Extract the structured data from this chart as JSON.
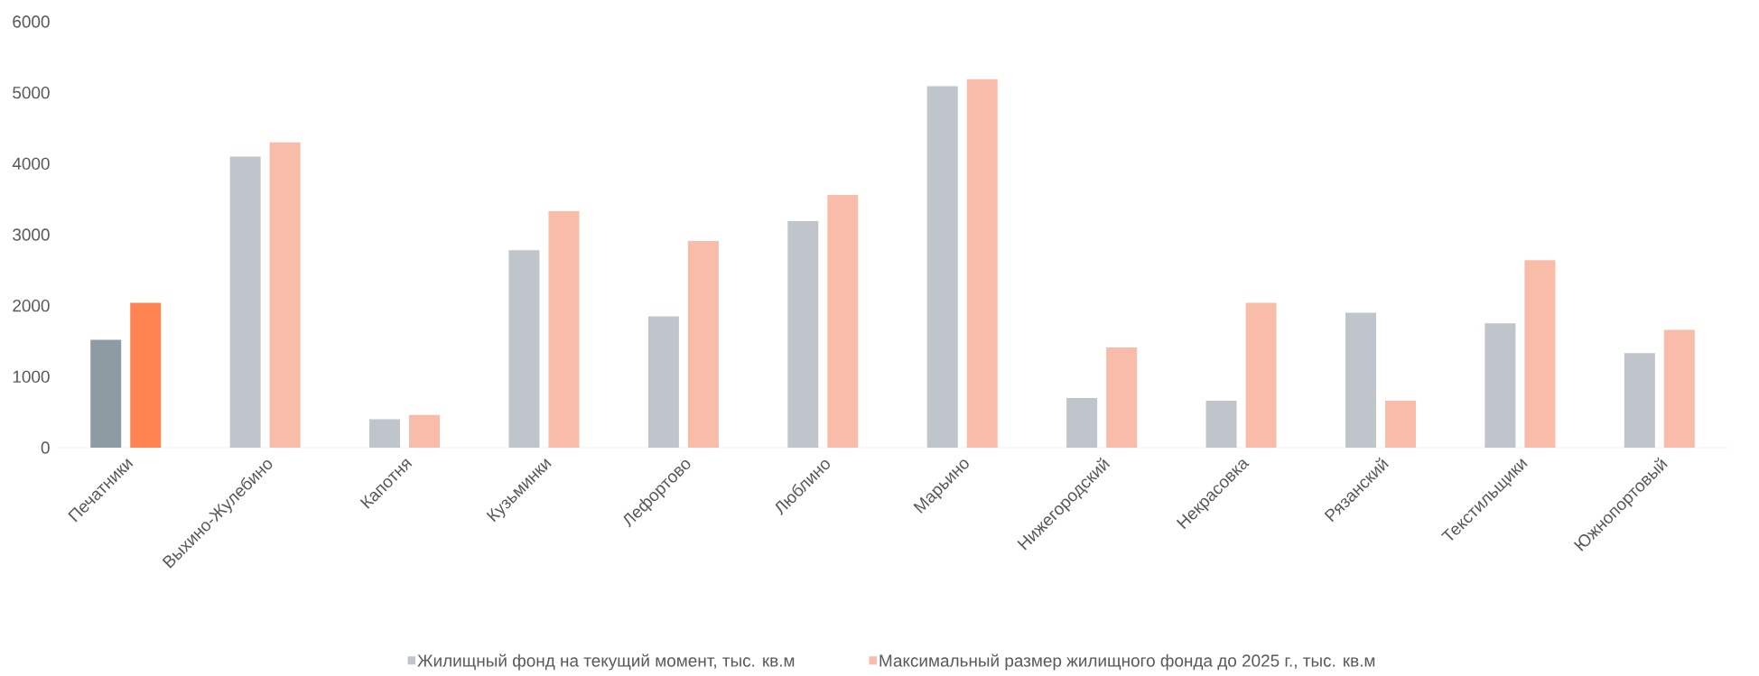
{
  "chart_data": {
    "type": "bar",
    "categories": [
      "Печатники",
      "Выхино-Жулебино",
      "Капотня",
      "Кузьминки",
      "Лефортово",
      "Люблино",
      "Марьино",
      "Нижегородский",
      "Некрасовка",
      "Рязанский",
      "Текстильщики",
      "Южнопортовый"
    ],
    "series": [
      {
        "name": "Жилищный фонд на текущий момент, тыс. кв.м",
        "color": "#bfc5ca",
        "colors": [
          "#8f9ba3",
          "#bfc5ca",
          "#bfc5ca",
          "#bfc5ca",
          "#bfc5ca",
          "#bfc5ca",
          "#bfc5ca",
          "#bfc5ca",
          "#bfc5ca",
          "#bfc5ca",
          "#bfc5ca",
          "#bfc5ca"
        ],
        "values": [
          1520,
          4100,
          400,
          2780,
          1850,
          3190,
          5090,
          700,
          660,
          1900,
          1750,
          1330
        ]
      },
      {
        "name": "Максимальный размер жилищного фонда до 2025 г., тыс. кв.м",
        "color": "#f8bca8",
        "colors": [
          "#ff8452",
          "#f8bca8",
          "#f8bca8",
          "#f8bca8",
          "#f8bca8",
          "#f8bca8",
          "#f8bca8",
          "#f8bca8",
          "#f8bca8",
          "#f8bca8",
          "#f8bca8",
          "#f8bca8"
        ],
        "values": [
          2040,
          4300,
          460,
          3330,
          2910,
          3560,
          5190,
          1410,
          2040,
          660,
          2640,
          1660
        ]
      }
    ],
    "ylim": [
      0,
      6000
    ],
    "yticks": [
      0,
      1000,
      2000,
      3000,
      4000,
      5000,
      6000
    ],
    "grid": false,
    "legend": "bottom"
  }
}
